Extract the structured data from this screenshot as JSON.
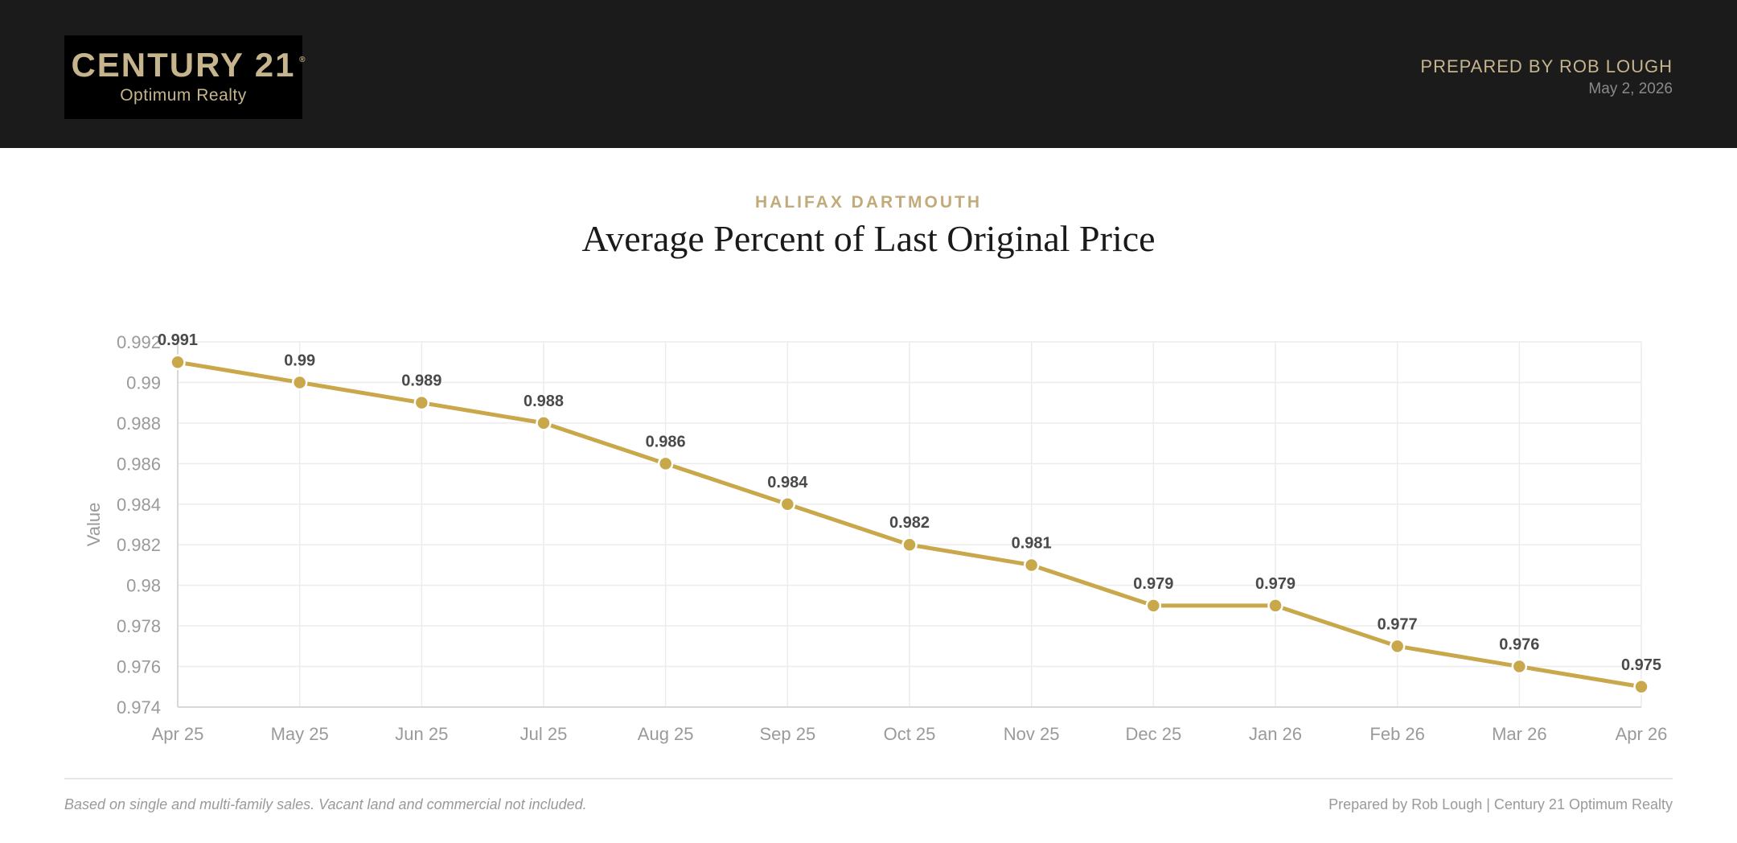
{
  "header": {
    "logo_main": "CENTURY 21",
    "logo_reg": "®",
    "logo_sub": "Optimum Realty",
    "prepared_by": "PREPARED BY ROB LOUGH",
    "date": "May 2, 2026"
  },
  "report": {
    "subtitle": "HALIFAX DARTMOUTH",
    "title": "Average Percent of Last Original Price"
  },
  "footer": {
    "note": "Based on single and multi-family sales. Vacant land and commercial not included.",
    "credit": "Prepared by Rob Lough | Century 21 Optimum Realty"
  },
  "colors": {
    "accent": "#c9a84c",
    "header_bg": "#1b1b1b",
    "brand_gold": "#c6b48d"
  },
  "chart_data": {
    "type": "line",
    "categories": [
      "Apr 25",
      "May 25",
      "Jun 25",
      "Jul 25",
      "Aug 25",
      "Sep 25",
      "Oct 25",
      "Nov 25",
      "Dec 25",
      "Jan 26",
      "Feb 26",
      "Mar 26",
      "Apr 26"
    ],
    "values": [
      0.991,
      0.99,
      0.989,
      0.988,
      0.986,
      0.984,
      0.982,
      0.981,
      0.979,
      0.979,
      0.977,
      0.976,
      0.975
    ],
    "data_labels": [
      "0.991",
      "0.99",
      "0.989",
      "0.988",
      "0.986",
      "0.984",
      "0.982",
      "0.981",
      "0.979",
      "0.979",
      "0.977",
      "0.976",
      "0.975"
    ],
    "ylabel": "Value",
    "ylim": [
      0.974,
      0.992
    ],
    "yticks": [
      0.974,
      0.976,
      0.978,
      0.98,
      0.982,
      0.984,
      0.986,
      0.988,
      0.99,
      0.992
    ],
    "ytick_labels": [
      "0.974",
      "0.976",
      "0.978",
      "0.98",
      "0.982",
      "0.984",
      "0.986",
      "0.988",
      "0.99",
      "0.992"
    ],
    "grid": true,
    "legend": false
  }
}
